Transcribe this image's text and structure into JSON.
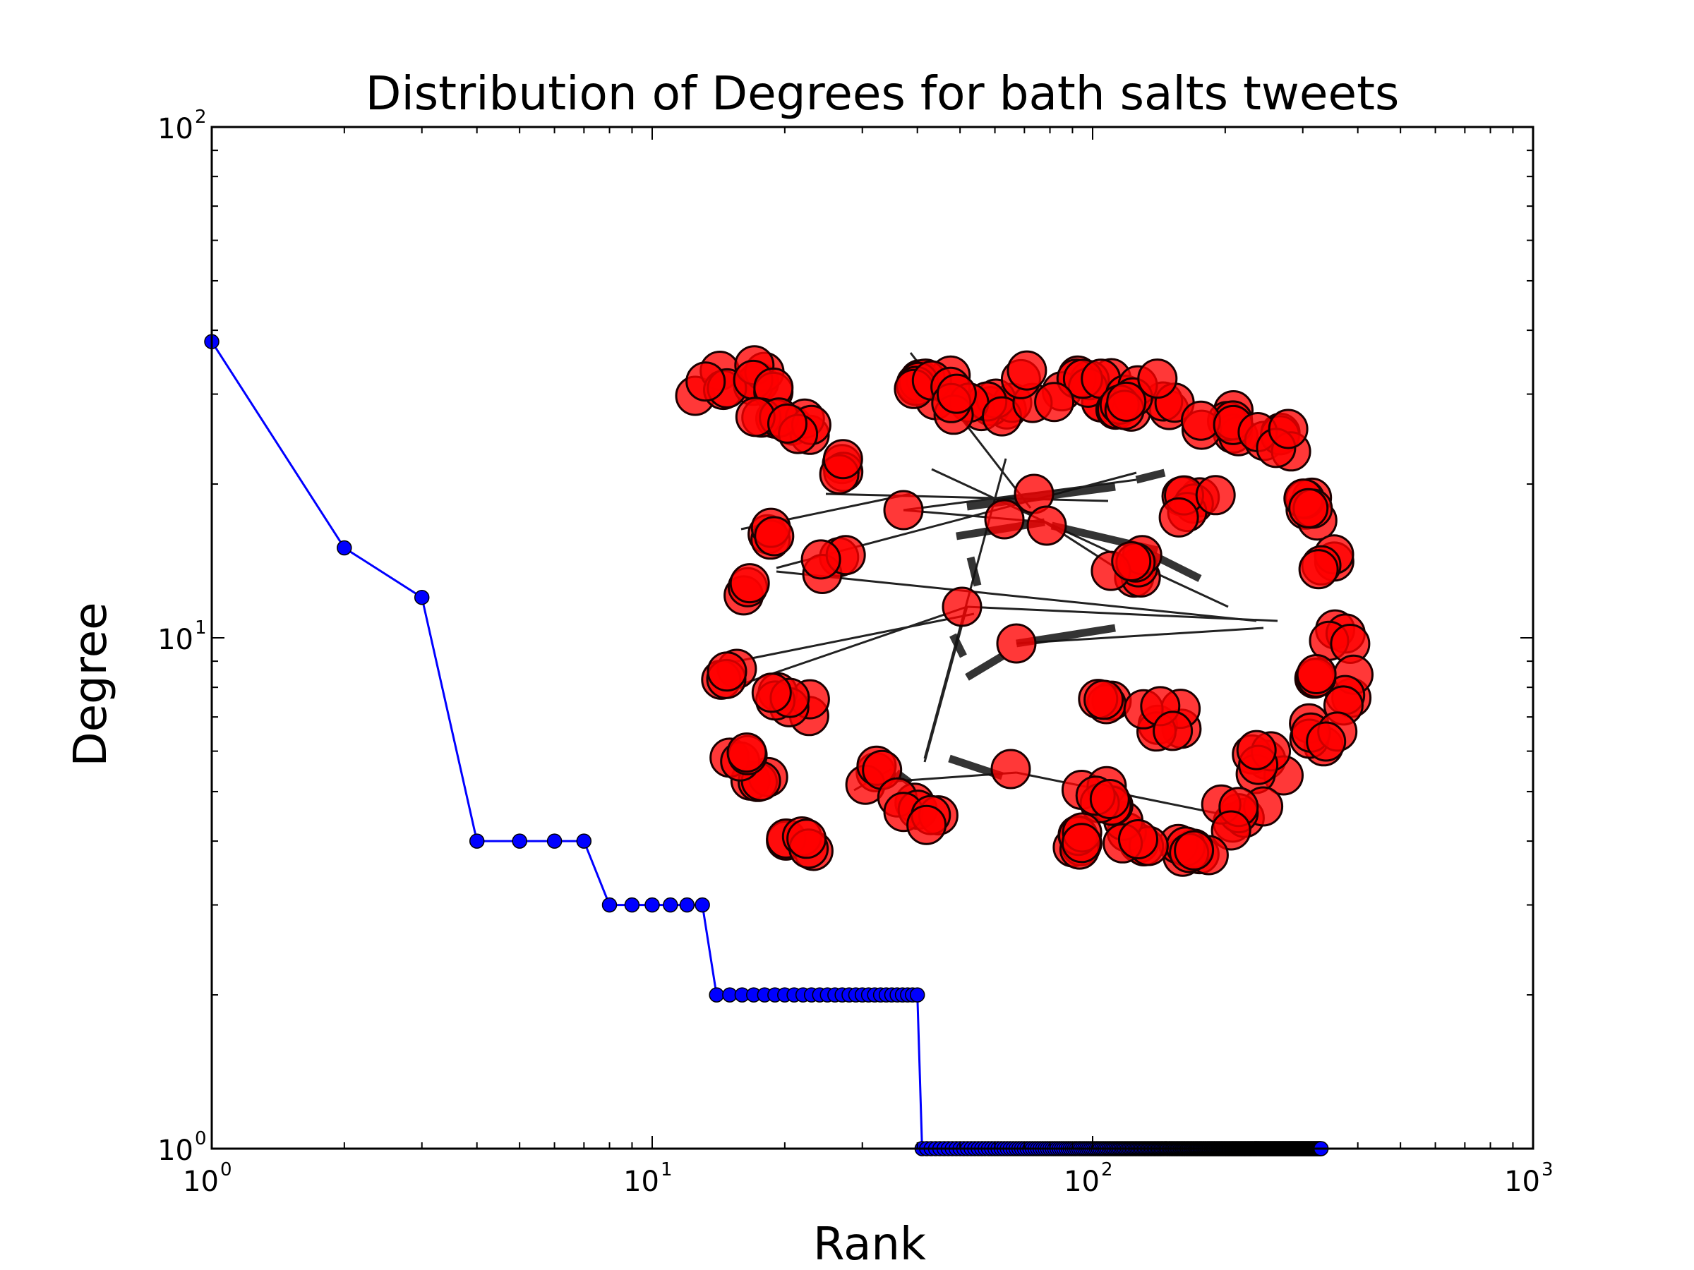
{
  "chart_data": {
    "type": "line",
    "title": "Distribution of Degrees for bath salts tweets",
    "xlabel": "Rank",
    "ylabel": "Degree",
    "x_scale": "log",
    "y_scale": "log",
    "xlim": [
      1,
      1000
    ],
    "ylim": [
      1,
      100
    ],
    "x_ticks": [
      {
        "base": "10",
        "exp": "0",
        "value": 1
      },
      {
        "base": "10",
        "exp": "1",
        "value": 10
      },
      {
        "base": "10",
        "exp": "2",
        "value": 100
      },
      {
        "base": "10",
        "exp": "3",
        "value": 1000
      }
    ],
    "y_ticks": [
      {
        "base": "10",
        "exp": "0",
        "value": 1
      },
      {
        "base": "10",
        "exp": "1",
        "value": 10
      },
      {
        "base": "10",
        "exp": "2",
        "value": 100
      }
    ],
    "grid": false,
    "series": [
      {
        "color": "#0000ff",
        "marker": "circle",
        "segments": [
          {
            "from_rank": 1,
            "to_rank": 1,
            "degree": 38
          },
          {
            "from_rank": 2,
            "to_rank": 2,
            "degree": 15
          },
          {
            "from_rank": 3,
            "to_rank": 3,
            "degree": 12
          },
          {
            "from_rank": 4,
            "to_rank": 7,
            "degree": 4
          },
          {
            "from_rank": 8,
            "to_rank": 13,
            "degree": 3
          },
          {
            "from_rank": 14,
            "to_rank": 40,
            "degree": 2
          },
          {
            "from_rank": 41,
            "to_rank": 330,
            "degree": 1
          }
        ]
      }
    ],
    "inset": {
      "type": "network graph",
      "node_color": "#ff0000",
      "edge_color": "#000000"
    }
  }
}
